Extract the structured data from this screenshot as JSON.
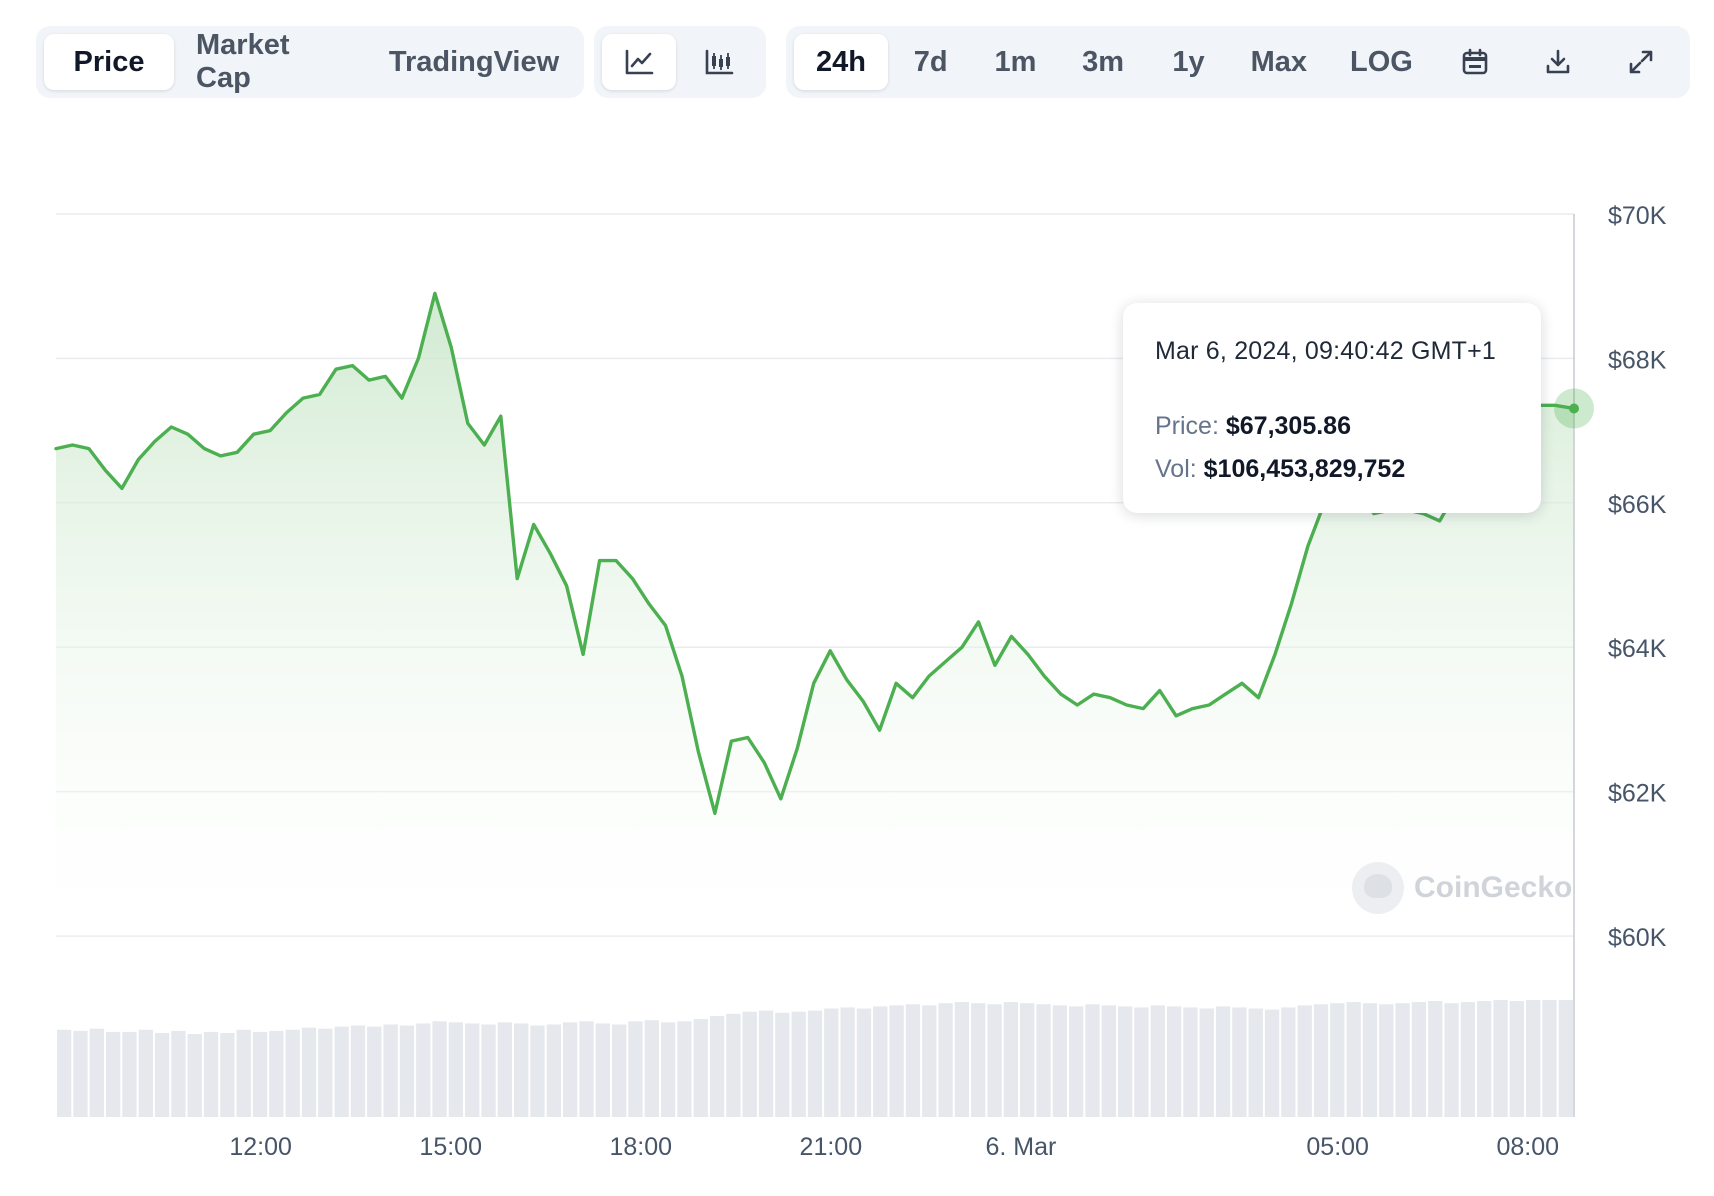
{
  "toolbar": {
    "view_tabs": [
      {
        "label": "Price",
        "active": true
      },
      {
        "label": "Market Cap",
        "active": false
      },
      {
        "label": "TradingView",
        "active": false
      }
    ],
    "chart_style": [
      {
        "icon": "line-chart-icon",
        "active": true
      },
      {
        "icon": "candlestick-icon",
        "active": false
      }
    ],
    "ranges": [
      {
        "label": "24h",
        "active": true
      },
      {
        "label": "7d",
        "active": false
      },
      {
        "label": "1m",
        "active": false
      },
      {
        "label": "3m",
        "active": false
      },
      {
        "label": "1y",
        "active": false
      },
      {
        "label": "Max",
        "active": false
      },
      {
        "label": "LOG",
        "active": false
      }
    ],
    "action_icons": [
      "calendar-icon",
      "download-icon",
      "fullscreen-icon"
    ]
  },
  "tooltip": {
    "date": "Mar 6, 2024, 09:40:42 GMT+1",
    "price_label": "Price:",
    "price_value": "$67,305.86",
    "vol_label": "Vol:",
    "vol_value": "$106,453,829,752"
  },
  "watermark": "CoinGecko",
  "colors": {
    "line": "#4caf50",
    "area_top": "#c9e6c9",
    "volume_bar": "#e5e8ec",
    "grid": "#e9ecef",
    "accent_active_bg": "#ffffff",
    "toolbar_bg": "#f1f4f8"
  },
  "chart_data": {
    "type": "area",
    "y_axis_labels": [
      "$70K",
      "$68K",
      "$66K",
      "$64K",
      "$62K",
      "$60K"
    ],
    "ylim": [
      60000,
      70000
    ],
    "x_tick_labels": [
      "12:00",
      "15:00",
      "18:00",
      "21:00",
      "6. Mar",
      "05:00",
      "08:00"
    ],
    "x_tick_hours": [
      12,
      15,
      18,
      21,
      24,
      29,
      32
    ],
    "xlim_hours": [
      8.77,
      32.73
    ],
    "grid": true,
    "series": [
      {
        "x_hours": [
          8.77,
          9.03,
          9.29,
          9.55,
          9.81,
          10.07,
          10.33,
          10.59,
          10.85,
          11.11,
          11.37,
          11.63,
          11.89,
          12.15,
          12.41,
          12.67,
          12.93,
          13.19,
          13.45,
          13.71,
          13.97,
          14.23,
          14.49,
          14.75,
          15.01,
          15.27,
          15.53,
          15.79,
          16.05,
          16.31,
          16.57,
          16.83,
          17.09,
          17.35,
          17.61,
          17.87,
          18.13,
          18.39,
          18.65,
          18.91,
          19.17,
          19.43,
          19.69,
          19.95,
          20.21,
          20.47,
          20.73,
          20.99,
          21.25,
          21.51,
          21.77,
          22.03,
          22.29,
          22.55,
          22.81,
          23.07,
          23.33,
          23.59,
          23.85,
          24.11,
          24.37,
          24.63,
          24.89,
          25.15,
          25.41,
          25.67,
          25.93,
          26.19,
          26.45,
          26.71,
          26.97,
          27.23,
          27.49,
          27.75,
          28.01,
          28.27,
          28.53,
          28.79,
          29.05,
          29.31,
          29.57,
          29.83,
          30.09,
          30.35,
          30.61,
          30.87,
          31.13,
          31.39,
          31.65,
          31.91,
          32.17,
          32.43,
          32.73
        ],
        "values": [
          66750,
          66800,
          66750,
          66450,
          66200,
          66600,
          66850,
          67050,
          66950,
          66750,
          66650,
          66700,
          66950,
          67000,
          67250,
          67450,
          67500,
          67850,
          67900,
          67700,
          67750,
          67450,
          68000,
          68900,
          68150,
          67100,
          66800,
          67200,
          64950,
          65700,
          65300,
          64850,
          63900,
          65200,
          65200,
          64950,
          64600,
          64300,
          63600,
          62550,
          61700,
          62700,
          62750,
          62400,
          61900,
          62600,
          63500,
          63950,
          63550,
          63250,
          62850,
          63500,
          63300,
          63600,
          63800,
          64000,
          64350,
          63750,
          64150,
          63900,
          63600,
          63350,
          63200,
          63350,
          63300,
          63200,
          63150,
          63400,
          63050,
          63150,
          63200,
          63350,
          63500,
          63300,
          63900,
          64600,
          65400,
          66000,
          66150,
          66200,
          65850,
          65900,
          65900,
          65850,
          65750,
          66150,
          66350,
          66600,
          66950,
          67200,
          67350,
          67350,
          67305.86
        ]
      }
    ],
    "volume_relative": [
      0.82,
      0.81,
      0.83,
      0.8,
      0.8,
      0.82,
      0.79,
      0.81,
      0.78,
      0.8,
      0.79,
      0.82,
      0.8,
      0.81,
      0.82,
      0.84,
      0.83,
      0.85,
      0.86,
      0.85,
      0.87,
      0.86,
      0.88,
      0.9,
      0.89,
      0.88,
      0.87,
      0.89,
      0.88,
      0.86,
      0.87,
      0.89,
      0.9,
      0.88,
      0.87,
      0.9,
      0.91,
      0.89,
      0.9,
      0.92,
      0.95,
      0.97,
      0.99,
      1.0,
      0.98,
      0.99,
      1.0,
      1.02,
      1.03,
      1.02,
      1.04,
      1.05,
      1.06,
      1.05,
      1.07,
      1.08,
      1.07,
      1.06,
      1.08,
      1.07,
      1.06,
      1.05,
      1.04,
      1.06,
      1.05,
      1.04,
      1.03,
      1.05,
      1.04,
      1.03,
      1.02,
      1.04,
      1.03,
      1.02,
      1.01,
      1.03,
      1.05,
      1.06,
      1.07,
      1.08,
      1.07,
      1.06,
      1.07,
      1.08,
      1.09,
      1.07,
      1.08,
      1.09,
      1.1,
      1.09,
      1.1,
      1.1,
      1.1
    ]
  }
}
